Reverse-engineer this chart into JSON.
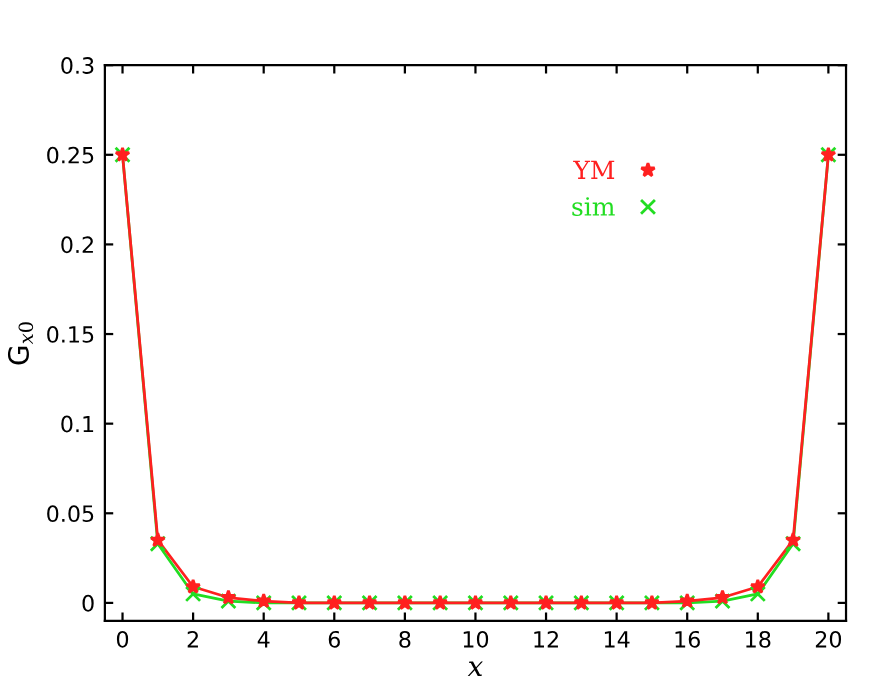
{
  "chart_data": {
    "type": "line",
    "xlabel": "x",
    "ylabel": "G$_{x0}$",
    "x": [
      0,
      1,
      2,
      3,
      4,
      5,
      6,
      7,
      8,
      9,
      10,
      11,
      12,
      13,
      14,
      15,
      16,
      17,
      18,
      19,
      20
    ],
    "series": [
      {
        "name": "YM",
        "color": "#ff2020",
        "marker": "star",
        "values": [
          0.25,
          0.035,
          0.009,
          0.003,
          0.001,
          0,
          0,
          0,
          0,
          0,
          0,
          0,
          0,
          0,
          0,
          0,
          0.001,
          0.003,
          0.009,
          0.035,
          0.25
        ]
      },
      {
        "name": "sim",
        "color": "#22dd22",
        "marker": "cross",
        "values": [
          0.25,
          0.033,
          0.005,
          0.001,
          0,
          0,
          0,
          0,
          0,
          0,
          0,
          0,
          0,
          0,
          0,
          0,
          0,
          0.001,
          0.005,
          0.033,
          0.25
        ]
      }
    ],
    "xlim": [
      -0.5,
      20.5
    ],
    "ylim": [
      -0.01,
      0.3
    ],
    "xticks": [
      0,
      2,
      4,
      6,
      8,
      10,
      12,
      14,
      16,
      18,
      20
    ],
    "yticks": [
      0,
      0.05,
      0.1,
      0.15,
      0.2,
      0.25,
      0.3
    ],
    "grid": false,
    "legend": "top right",
    "line_style": "solid"
  }
}
